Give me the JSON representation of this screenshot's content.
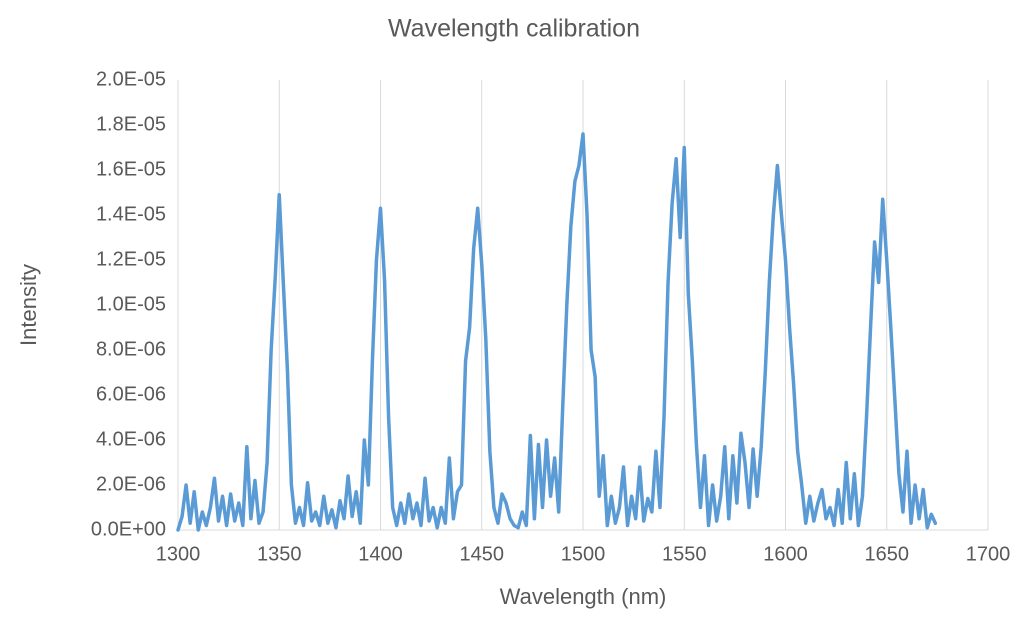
{
  "chart_data": {
    "type": "line",
    "title": "Wavelength calibration",
    "x_label": "Wavelength (nm)",
    "y_label": "Intensity",
    "color": "#5b9bd5",
    "grid": "x",
    "x": [
      1300,
      1302,
      1304,
      1306,
      1308,
      1310,
      1312,
      1314,
      1316,
      1318,
      1320,
      1322,
      1324,
      1326,
      1328,
      1330,
      1332,
      1334,
      1336,
      1338,
      1340,
      1342,
      1344,
      1346,
      1348,
      1350,
      1352,
      1354,
      1356,
      1358,
      1360,
      1362,
      1364,
      1366,
      1368,
      1370,
      1372,
      1374,
      1376,
      1378,
      1380,
      1382,
      1384,
      1386,
      1388,
      1390,
      1392,
      1394,
      1396,
      1398,
      1400,
      1402,
      1404,
      1406,
      1408,
      1410,
      1412,
      1414,
      1416,
      1418,
      1420,
      1422,
      1424,
      1426,
      1428,
      1430,
      1432,
      1434,
      1436,
      1438,
      1440,
      1442,
      1444,
      1446,
      1448,
      1450,
      1452,
      1454,
      1456,
      1458,
      1460,
      1462,
      1464,
      1466,
      1468,
      1470,
      1472,
      1474,
      1476,
      1478,
      1480,
      1482,
      1484,
      1486,
      1488,
      1490,
      1492,
      1494,
      1496,
      1498,
      1500,
      1502,
      1504,
      1506,
      1508,
      1510,
      1512,
      1514,
      1516,
      1518,
      1520,
      1522,
      1524,
      1526,
      1528,
      1530,
      1532,
      1534,
      1536,
      1538,
      1540,
      1542,
      1544,
      1546,
      1548,
      1550,
      1552,
      1554,
      1556,
      1558,
      1560,
      1562,
      1564,
      1566,
      1568,
      1570,
      1572,
      1574,
      1576,
      1578,
      1580,
      1582,
      1584,
      1586,
      1588,
      1590,
      1592,
      1594,
      1596,
      1598,
      1600,
      1602,
      1604,
      1606,
      1608,
      1610,
      1612,
      1614,
      1616,
      1618,
      1620,
      1622,
      1624,
      1626,
      1628,
      1630,
      1632,
      1634,
      1636,
      1638,
      1640,
      1642,
      1644,
      1646,
      1648,
      1650,
      1652,
      1654,
      1656,
      1658,
      1660,
      1662,
      1664,
      1666,
      1668,
      1670,
      1672,
      1674
    ],
    "values": [
      0,
      6e-07,
      2e-06,
      3e-07,
      1.7e-06,
      0,
      8e-07,
      2e-07,
      1e-06,
      2.3e-06,
      4e-07,
      1.5e-06,
      2e-07,
      1.6e-06,
      4e-07,
      1.2e-06,
      2e-07,
      3.7e-06,
      5e-07,
      2.2e-06,
      3e-07,
      8e-07,
      3e-06,
      8e-06,
      1.12e-05,
      1.49e-05,
      1.1e-05,
      7.2e-06,
      2e-06,
      3e-07,
      1e-06,
      2e-07,
      2.1e-06,
      4e-07,
      8e-07,
      2e-07,
      1.5e-06,
      3e-07,
      9e-07,
      1e-07,
      1.3e-06,
      5e-07,
      2.4e-06,
      6e-07,
      1.7e-06,
      3e-07,
      4e-06,
      2e-06,
      7.5e-06,
      1.2e-05,
      1.43e-05,
      1.11e-05,
      5e-06,
      1e-06,
      2e-07,
      1.2e-06,
      3e-07,
      1.6e-06,
      5e-07,
      1.2e-06,
      2e-07,
      2.3e-06,
      4e-07,
      1e-06,
      1e-07,
      1e-06,
      3e-07,
      3.2e-06,
      5e-07,
      1.7e-06,
      2e-06,
      7.5e-06,
      9e-06,
      1.25e-05,
      1.43e-05,
      1.18e-05,
      8.5e-06,
      3.5e-06,
      1e-06,
      3e-07,
      1.6e-06,
      1.2e-06,
      5e-07,
      2e-07,
      1e-07,
      8e-07,
      2e-07,
      4.2e-06,
      5e-07,
      3.8e-06,
      1e-06,
      4e-06,
      1.5e-06,
      3.2e-06,
      8e-07,
      5.5e-06,
      1e-05,
      1.35e-05,
      1.55e-05,
      1.62e-05,
      1.76e-05,
      1.4e-05,
      8e-06,
      6.8e-06,
      1.5e-06,
      3.3e-06,
      2e-07,
      1.5e-06,
      3e-07,
      1e-06,
      2.8e-06,
      2e-07,
      1.5e-06,
      5e-07,
      2.8e-06,
      4e-07,
      1.4e-06,
      8e-07,
      3.5e-06,
      1e-06,
      5e-06,
      1.1e-05,
      1.45e-05,
      1.65e-05,
      1.3e-05,
      1.7e-05,
      1.05e-05,
      7.5e-06,
      3.8e-06,
      1e-06,
      3.3e-06,
      2e-07,
      2e-06,
      4e-07,
      1.5e-06,
      3.7e-06,
      5e-07,
      3.3e-06,
      1.2e-06,
      4.3e-06,
      3e-06,
      1e-06,
      3.6e-06,
      1.5e-06,
      3.7e-06,
      7e-06,
      1.1e-05,
      1.4e-05,
      1.62e-05,
      1.4e-05,
      1.2e-05,
      9e-06,
      6.5e-06,
      3.5e-06,
      2e-06,
      3e-07,
      1.5e-06,
      4e-07,
      1.2e-06,
      1.8e-06,
      5e-07,
      1e-06,
      2e-07,
      1.8e-06,
      3e-07,
      3e-06,
      5e-07,
      2.5e-06,
      2e-07,
      1.5e-06,
      5e-06,
      9e-06,
      1.28e-05,
      1.1e-05,
      1.47e-05,
      1.2e-05,
      9e-06,
      5.8e-06,
      2.5e-06,
      8e-07,
      3.5e-06,
      3e-07,
      2e-06,
      5e-07,
      1.8e-06,
      1e-07,
      7e-07,
      3e-07
    ],
    "xlim": [
      1300,
      1700
    ],
    "xticks": [
      1300,
      1350,
      1400,
      1450,
      1500,
      1550,
      1600,
      1650,
      1700
    ],
    "ylim": [
      0,
      2e-05
    ],
    "yticks": [
      {
        "value": 0,
        "label": "0.0E+00"
      },
      {
        "value": 2e-06,
        "label": "2.0E-06"
      },
      {
        "value": 4e-06,
        "label": "4.0E-06"
      },
      {
        "value": 6e-06,
        "label": "6.0E-06"
      },
      {
        "value": 8e-06,
        "label": "8.0E-06"
      },
      {
        "value": 1e-05,
        "label": "1.0E-05"
      },
      {
        "value": 1.2e-05,
        "label": "1.2E-05"
      },
      {
        "value": 1.4e-05,
        "label": "1.4E-05"
      },
      {
        "value": 1.6e-05,
        "label": "1.6E-05"
      },
      {
        "value": 1.8e-05,
        "label": "1.8E-05"
      },
      {
        "value": 2e-05,
        "label": "2.0E-05"
      }
    ]
  }
}
